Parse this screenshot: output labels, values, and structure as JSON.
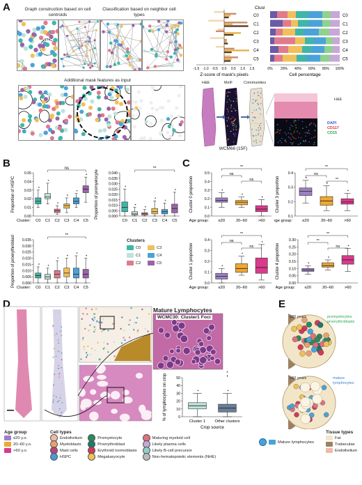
{
  "panels": {
    "A": "A",
    "B": "B",
    "C": "C",
    "D": "D",
    "E": "E"
  },
  "panelA": {
    "caption_graph": "Graph construction based on cell centroids",
    "caption_class": "Classification based on neighbor cell types",
    "caption_mask": "Additional mask features as input",
    "he": "H&E",
    "mxif": "MxIF",
    "communities": "Communities",
    "sample": "WCM66 (15F)",
    "inset_he": "H&E",
    "stain_labels": [
      {
        "text": "DAPI",
        "color": "#2f5bd8"
      },
      {
        "text": "CD117",
        "color": "#d63030"
      },
      {
        "text": "CD15",
        "color": "#2aa84a"
      }
    ]
  },
  "colors": {
    "C0": "#3fb6a8",
    "C1": "#bfe3dc",
    "C2": "#e07b8c",
    "C3": "#f0c05a",
    "C4": "#4aa3d8",
    "C5": "#9b63a8"
  },
  "chart_data": [
    {
      "type": "bar",
      "title": "Cluster",
      "xlabel": "Z-score of mask's pixels",
      "categories": [
        "C0",
        "C1",
        "C2",
        "C3",
        "C4",
        "C5"
      ],
      "xticks": [
        "-1.5",
        "-1.0",
        "-0.5",
        "0.0",
        "0.5",
        "1.0",
        "1.5"
      ],
      "xlim": [
        -1.5,
        1.5
      ],
      "series": [
        {
          "values": [
            -0.55,
            -0.85,
            -0.35,
            -0.75,
            -0.45,
            0.35
          ],
          "color": "#f2d7b0"
        },
        {
          "values": [
            0.65,
            1.25,
            -0.45,
            0.15,
            0.55,
            0.75
          ],
          "color": "#c98e6a"
        },
        {
          "values": [
            0.35,
            0.45,
            0.9,
            0.15,
            1.35,
            0.4
          ],
          "color": "#e8b34a"
        },
        {
          "values": [
            0.25,
            1.3,
            0.5,
            0.2,
            0.4,
            0.35
          ],
          "color": "#5a3b2a"
        }
      ]
    },
    {
      "type": "bar",
      "xlabel": "Cell percentage",
      "categories": [
        "C0",
        "C1",
        "C2",
        "C3",
        "C4",
        "C5"
      ],
      "xticks": [
        "0%",
        "20%",
        "40%",
        "60%",
        "80%",
        "100%"
      ],
      "stacked": true,
      "series": [
        {
          "values": [
            0.1,
            0.18,
            0.08,
            0.06,
            0.12,
            0.06
          ],
          "color": "#6b5aa6"
        },
        {
          "values": [
            0.15,
            0.12,
            0.1,
            0.3,
            0.14,
            0.12
          ],
          "color": "#e07b8c"
        },
        {
          "values": [
            0.12,
            0.1,
            0.18,
            0.14,
            0.2,
            0.2
          ],
          "color": "#f0c05a"
        },
        {
          "values": [
            0.18,
            0.15,
            0.12,
            0.12,
            0.14,
            0.14
          ],
          "color": "#3fb6a8"
        },
        {
          "values": [
            0.2,
            0.2,
            0.22,
            0.18,
            0.18,
            0.2
          ],
          "color": "#4aa3d8"
        },
        {
          "values": [
            0.12,
            0.12,
            0.15,
            0.1,
            0.12,
            0.14
          ],
          "color": "#8fd18f"
        },
        {
          "values": [
            0.13,
            0.13,
            0.15,
            0.1,
            0.1,
            0.14
          ],
          "color": "#c9a7d9"
        }
      ]
    },
    {
      "type": "box",
      "ylabel": "Proportion of HSPC",
      "xprefix": "Cluster:",
      "categories": [
        "C0",
        "C1",
        "C2",
        "C3",
        "C4",
        "C5"
      ],
      "yticks": [
        "0.00",
        "0.01",
        "0.02",
        "0.03",
        "0.04",
        "0.05"
      ],
      "ylim": [
        0,
        0.05
      ],
      "boxes": [
        [
          0.01,
          0.014,
          0.017,
          0.021,
          0.03
        ],
        [
          0.014,
          0.02,
          0.022,
          0.026,
          0.038
        ],
        [
          0.002,
          0.004,
          0.006,
          0.008,
          0.012
        ],
        [
          0.004,
          0.009,
          0.012,
          0.014,
          0.021
        ],
        [
          0.01,
          0.014,
          0.017,
          0.021,
          0.026
        ],
        [
          0.016,
          0.027,
          0.031,
          0.035,
          0.045
        ]
      ],
      "annotation": "ns"
    },
    {
      "type": "box",
      "ylabel": "Proportion of promyelocyte",
      "categories": [
        "C0",
        "C1",
        "C2",
        "C3",
        "C4",
        "C5"
      ],
      "yticks": [
        "0.000",
        "0.005",
        "0.010",
        "0.015",
        "0.020",
        "0.025",
        "0.030",
        "0.035",
        "0.040"
      ],
      "ylim": [
        0,
        0.04
      ],
      "boxes": [
        [
          0.0,
          0.004,
          0.008,
          0.013,
          0.025
        ],
        [
          0.0,
          0.001,
          0.002,
          0.004,
          0.008
        ],
        [
          0.0,
          0.001,
          0.002,
          0.003,
          0.006
        ],
        [
          0.0,
          0.002,
          0.004,
          0.007,
          0.014
        ],
        [
          0.0,
          0.002,
          0.004,
          0.006,
          0.012
        ],
        [
          0.0,
          0.003,
          0.007,
          0.011,
          0.022
        ]
      ],
      "annotation": "**"
    },
    {
      "type": "box",
      "ylabel": "Proportion of proerythroblast",
      "xprefix": "Cluster:",
      "categories": [
        "C0",
        "C1",
        "C2",
        "C3",
        "C4",
        "C5"
      ],
      "yticks": [
        "0.000",
        "0.005",
        "0.010",
        "0.015",
        "0.020",
        "0.025",
        "0.030",
        "0.035"
      ],
      "ylim": [
        0,
        0.035
      ],
      "boxes": [
        [
          0.0,
          0.004,
          0.006,
          0.008,
          0.013
        ],
        [
          0.0,
          0.003,
          0.005,
          0.007,
          0.012
        ],
        [
          0.0,
          0.004,
          0.007,
          0.01,
          0.018
        ],
        [
          0.0,
          0.005,
          0.008,
          0.012,
          0.02
        ],
        [
          0.0,
          0.004,
          0.007,
          0.012,
          0.022
        ],
        [
          0.0,
          0.004,
          0.007,
          0.011,
          0.02
        ]
      ],
      "annotation": "**"
    },
    {
      "type": "box",
      "ylabel": "Cluster 0 proportion",
      "xprefix": "Age group:",
      "categories": [
        "≤20",
        "20–60",
        ">60"
      ],
      "yticks": [
        "0.0",
        "0.1",
        "0.2",
        "0.3",
        "0.4",
        "0.5"
      ],
      "ylim": [
        0,
        0.5
      ],
      "colors": [
        "#9b7fc4",
        "#f0a830",
        "#d93a8c"
      ],
      "boxes": [
        [
          0.1,
          0.16,
          0.18,
          0.21,
          0.27
        ],
        [
          0.1,
          0.13,
          0.16,
          0.18,
          0.22
        ],
        [
          0.0,
          0.05,
          0.08,
          0.12,
          0.19
        ]
      ],
      "annotations": [
        "**",
        "ns",
        "ns"
      ]
    },
    {
      "type": "box",
      "ylabel": "Cluster 3 proportion",
      "xprefix": "Age group:",
      "categories": [
        "≤20",
        "20–60",
        ">60"
      ],
      "yticks": [
        "0.1",
        "0.2",
        "0.3",
        "0.4"
      ],
      "ylim": [
        0.05,
        0.45
      ],
      "colors": [
        "#9b7fc4",
        "#f0a830",
        "#d93a8c"
      ],
      "boxes": [
        [
          0.17,
          0.24,
          0.28,
          0.31,
          0.38
        ],
        [
          0.1,
          0.15,
          0.19,
          0.23,
          0.33
        ],
        [
          0.1,
          0.16,
          0.18,
          0.21,
          0.26
        ]
      ],
      "annotations": [
        "**",
        "ns",
        "**"
      ]
    },
    {
      "type": "box",
      "ylabel": "Cluster 1 proportion",
      "xprefix": "Age group:",
      "categories": [
        "≤20",
        "20–60",
        ">60"
      ],
      "yticks": [
        "0.0",
        "0.1",
        "0.2",
        "0.3",
        "0.4"
      ],
      "ylim": [
        0,
        0.45
      ],
      "colors": [
        "#9b7fc4",
        "#f0a830",
        "#d93a8c"
      ],
      "boxes": [
        [
          0.0,
          0.04,
          0.07,
          0.1,
          0.15
        ],
        [
          0.08,
          0.11,
          0.15,
          0.2,
          0.28
        ],
        [
          0.03,
          0.1,
          0.16,
          0.26,
          0.4
        ]
      ],
      "annotations": [
        "**",
        "ns",
        "ns"
      ]
    },
    {
      "type": "box",
      "ylabel": "Cluster 4 proportion",
      "xprefix": "Age group:",
      "categories": [
        "≤20",
        "20–60",
        ">60"
      ],
      "yticks": [
        "0.00",
        "0.05",
        "0.10",
        "0.15",
        "0.20",
        "0.25",
        "0.30"
      ],
      "ylim": [
        0,
        0.3
      ],
      "colors": [
        "#9b7fc4",
        "#f0a830",
        "#d93a8c"
      ],
      "boxes": [
        [
          0.06,
          0.08,
          0.09,
          0.1,
          0.12
        ],
        [
          0.09,
          0.11,
          0.12,
          0.14,
          0.16
        ],
        [
          0.08,
          0.13,
          0.16,
          0.19,
          0.24
        ]
      ],
      "annotations": [
        "**",
        "**",
        "ns"
      ]
    },
    {
      "type": "box",
      "ylabel": "% of lymphocytes on crop",
      "xlabel": "Crop source",
      "categories": [
        "Cluster 1",
        "Other clusters"
      ],
      "yticks": [
        "0",
        "10",
        "20",
        "30",
        "40",
        "50"
      ],
      "ylim": [
        0,
        50
      ],
      "colors": [
        "#bfe3dc",
        "#6a7f98"
      ],
      "boxes": [
        [
          0,
          10,
          14,
          18,
          30
        ],
        [
          0,
          6,
          11,
          16,
          30
        ]
      ],
      "annotation": "*"
    }
  ],
  "panelB_legend": {
    "title": "Clusters",
    "items": [
      "C0",
      "C3",
      "C1",
      "C4",
      "C2",
      "C5"
    ]
  },
  "panelD": {
    "title": "Mature Lymphocytes",
    "crop_label": "WCMC30: Cluster1 Foci",
    "age_group_title": "Age group",
    "age_groups": [
      {
        "label": "≤20 y.o.",
        "color": "#9b7fc4"
      },
      {
        "label": "20–60 y.o.",
        "color": "#f0a830"
      },
      {
        "label": ">60 y.o.",
        "color": "#d93a8c"
      }
    ],
    "cell_types_title": "Cell types",
    "cell_types_col1": [
      {
        "label": "Endothelium",
        "color": "#f0b9a8"
      },
      {
        "label": "Myeloblasts",
        "color": "#e8a070"
      },
      {
        "label": "Mast cells",
        "color": "#b3467a"
      },
      {
        "label": "HSPC",
        "color": "#4a9bd8"
      }
    ],
    "cell_types_col2": [
      {
        "label": "Promyelocyte",
        "color": "#2b8a5a"
      },
      {
        "label": "Proerythroblast",
        "color": "#1f7a6a"
      },
      {
        "label": "Erythroid normoblasts",
        "color": "#d23a5a"
      },
      {
        "label": "Megakaryocyte",
        "color": "#f0c05a"
      }
    ],
    "cell_types_col3": [
      {
        "label": "Maturing myeloid cell",
        "color": "#e07080"
      },
      {
        "label": "Likely plasma cells",
        "color": "#c9a7d9"
      },
      {
        "label": "Likely B-cell precursor",
        "color": "#8fd0c8"
      },
      {
        "label": "Non-hematopoietic elements (NHE)",
        "color": "#bbbbbb"
      }
    ]
  },
  "panelE": {
    "young": "≤20 years",
    "old": ">60 years",
    "young_note1": "promyelocytes",
    "young_note2": "proerythroblasts",
    "old_note1": "mature",
    "old_note2": "lymphocytes",
    "mature_label": "Mature lymphocytes",
    "tissue_title": "Tissue types",
    "tissue": [
      {
        "label": "Fat",
        "color": "#f3e6c8"
      },
      {
        "label": "Trabeculae",
        "color": "#9c8062"
      },
      {
        "label": "Endothelium",
        "color": "#f0b9a8"
      }
    ]
  }
}
